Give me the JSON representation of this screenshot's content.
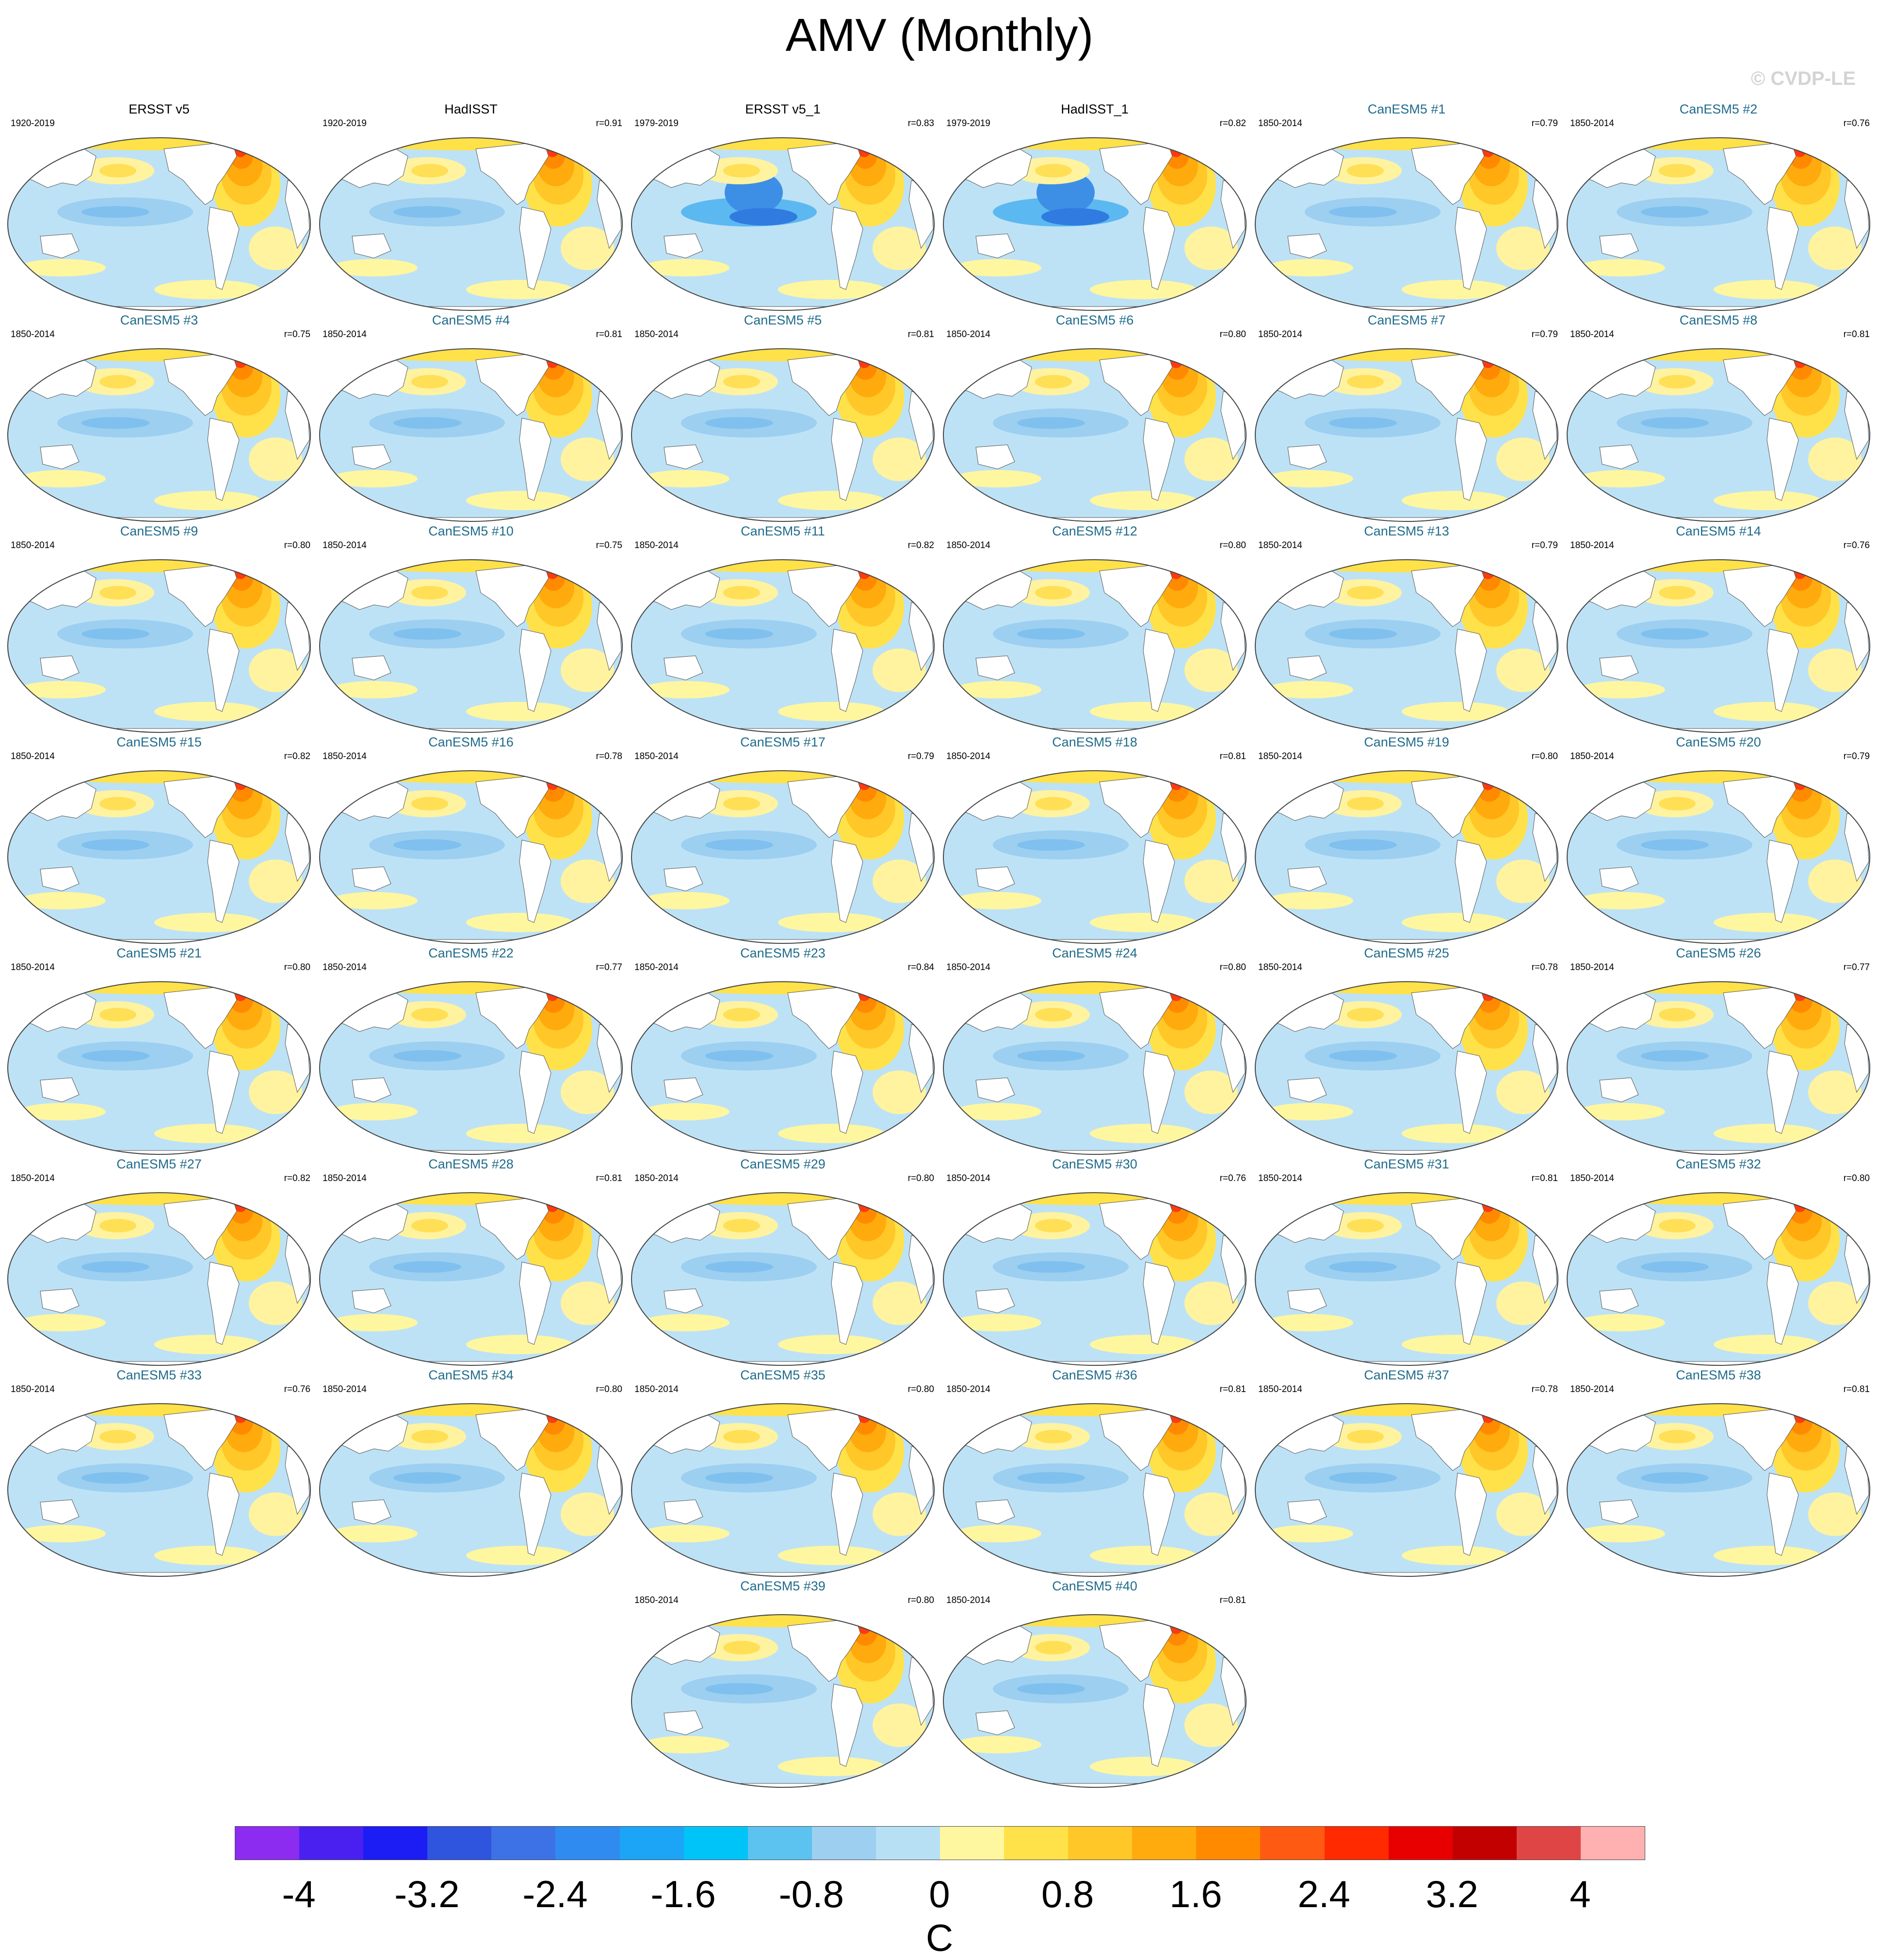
{
  "title": "AMV (Monthly)",
  "watermark": "© CVDP-LE",
  "colorbar": {
    "unit": "C",
    "labels": [
      "-4",
      "-3.2",
      "-2.4",
      "-1.6",
      "-0.8",
      "0",
      "0.8",
      "1.6",
      "2.4",
      "3.2",
      "4"
    ],
    "colors": [
      "#8b2cf0",
      "#4a20f0",
      "#1c1cf5",
      "#2f54de",
      "#3d72e6",
      "#2f8bf0",
      "#1ca4f7",
      "#00c4f7",
      "#5cc2f0",
      "#9ccff0",
      "#b7e0f5",
      "#fff6a0",
      "#ffe14a",
      "#ffc727",
      "#ffaa0d",
      "#ff8a00",
      "#ff5a12",
      "#ff2a00",
      "#e80000",
      "#c30000",
      "#e04545",
      "#ffb0b0"
    ]
  },
  "panels": [
    {
      "name": "ERSST v5",
      "period": "1920-2019",
      "r": "",
      "obs": true
    },
    {
      "name": "HadISST",
      "period": "1920-2019",
      "r": "r=0.91",
      "obs": true
    },
    {
      "name": "ERSST v5_1",
      "period": "1979-2019",
      "r": "r=0.83",
      "obs": true
    },
    {
      "name": "HadISST_1",
      "period": "1979-2019",
      "r": "r=0.82",
      "obs": true
    },
    {
      "name": "CanESM5 #1",
      "period": "1850-2014",
      "r": "r=0.79",
      "obs": false
    },
    {
      "name": "CanESM5 #2",
      "period": "1850-2014",
      "r": "r=0.76",
      "obs": false
    },
    {
      "name": "CanESM5 #3",
      "period": "1850-2014",
      "r": "r=0.75",
      "obs": false
    },
    {
      "name": "CanESM5 #4",
      "period": "1850-2014",
      "r": "r=0.81",
      "obs": false
    },
    {
      "name": "CanESM5 #5",
      "period": "1850-2014",
      "r": "r=0.81",
      "obs": false
    },
    {
      "name": "CanESM5 #6",
      "period": "1850-2014",
      "r": "r=0.80",
      "obs": false
    },
    {
      "name": "CanESM5 #7",
      "period": "1850-2014",
      "r": "r=0.79",
      "obs": false
    },
    {
      "name": "CanESM5 #8",
      "period": "1850-2014",
      "r": "r=0.81",
      "obs": false
    },
    {
      "name": "CanESM5 #9",
      "period": "1850-2014",
      "r": "r=0.80",
      "obs": false
    },
    {
      "name": "CanESM5 #10",
      "period": "1850-2014",
      "r": "r=0.75",
      "obs": false
    },
    {
      "name": "CanESM5 #11",
      "period": "1850-2014",
      "r": "r=0.82",
      "obs": false
    },
    {
      "name": "CanESM5 #12",
      "period": "1850-2014",
      "r": "r=0.80",
      "obs": false
    },
    {
      "name": "CanESM5 #13",
      "period": "1850-2014",
      "r": "r=0.79",
      "obs": false
    },
    {
      "name": "CanESM5 #14",
      "period": "1850-2014",
      "r": "r=0.76",
      "obs": false
    },
    {
      "name": "CanESM5 #15",
      "period": "1850-2014",
      "r": "r=0.82",
      "obs": false
    },
    {
      "name": "CanESM5 #16",
      "period": "1850-2014",
      "r": "r=0.78",
      "obs": false
    },
    {
      "name": "CanESM5 #17",
      "period": "1850-2014",
      "r": "r=0.79",
      "obs": false
    },
    {
      "name": "CanESM5 #18",
      "period": "1850-2014",
      "r": "r=0.81",
      "obs": false
    },
    {
      "name": "CanESM5 #19",
      "period": "1850-2014",
      "r": "r=0.80",
      "obs": false
    },
    {
      "name": "CanESM5 #20",
      "period": "1850-2014",
      "r": "r=0.79",
      "obs": false
    },
    {
      "name": "CanESM5 #21",
      "period": "1850-2014",
      "r": "r=0.80",
      "obs": false
    },
    {
      "name": "CanESM5 #22",
      "period": "1850-2014",
      "r": "r=0.77",
      "obs": false
    },
    {
      "name": "CanESM5 #23",
      "period": "1850-2014",
      "r": "r=0.84",
      "obs": false
    },
    {
      "name": "CanESM5 #24",
      "period": "1850-2014",
      "r": "r=0.80",
      "obs": false
    },
    {
      "name": "CanESM5 #25",
      "period": "1850-2014",
      "r": "r=0.78",
      "obs": false
    },
    {
      "name": "CanESM5 #26",
      "period": "1850-2014",
      "r": "r=0.77",
      "obs": false
    },
    {
      "name": "CanESM5 #27",
      "period": "1850-2014",
      "r": "r=0.82",
      "obs": false
    },
    {
      "name": "CanESM5 #28",
      "period": "1850-2014",
      "r": "r=0.81",
      "obs": false
    },
    {
      "name": "CanESM5 #29",
      "period": "1850-2014",
      "r": "r=0.80",
      "obs": false
    },
    {
      "name": "CanESM5 #30",
      "period": "1850-2014",
      "r": "r=0.76",
      "obs": false
    },
    {
      "name": "CanESM5 #31",
      "period": "1850-2014",
      "r": "r=0.81",
      "obs": false
    },
    {
      "name": "CanESM5 #32",
      "period": "1850-2014",
      "r": "r=0.80",
      "obs": false
    },
    {
      "name": "CanESM5 #33",
      "period": "1850-2014",
      "r": "r=0.76",
      "obs": false
    },
    {
      "name": "CanESM5 #34",
      "period": "1850-2014",
      "r": "r=0.80",
      "obs": false
    },
    {
      "name": "CanESM5 #35",
      "period": "1850-2014",
      "r": "r=0.80",
      "obs": false
    },
    {
      "name": "CanESM5 #36",
      "period": "1850-2014",
      "r": "r=0.81",
      "obs": false
    },
    {
      "name": "CanESM5 #37",
      "period": "1850-2014",
      "r": "r=0.78",
      "obs": false
    },
    {
      "name": "CanESM5 #38",
      "period": "1850-2014",
      "r": "r=0.81",
      "obs": false
    },
    {
      "name": "CanESM5 #39",
      "period": "1850-2014",
      "r": "r=0.80",
      "obs": false
    },
    {
      "name": "CanESM5 #40",
      "period": "1850-2014",
      "r": "r=0.81",
      "obs": false
    }
  ]
}
